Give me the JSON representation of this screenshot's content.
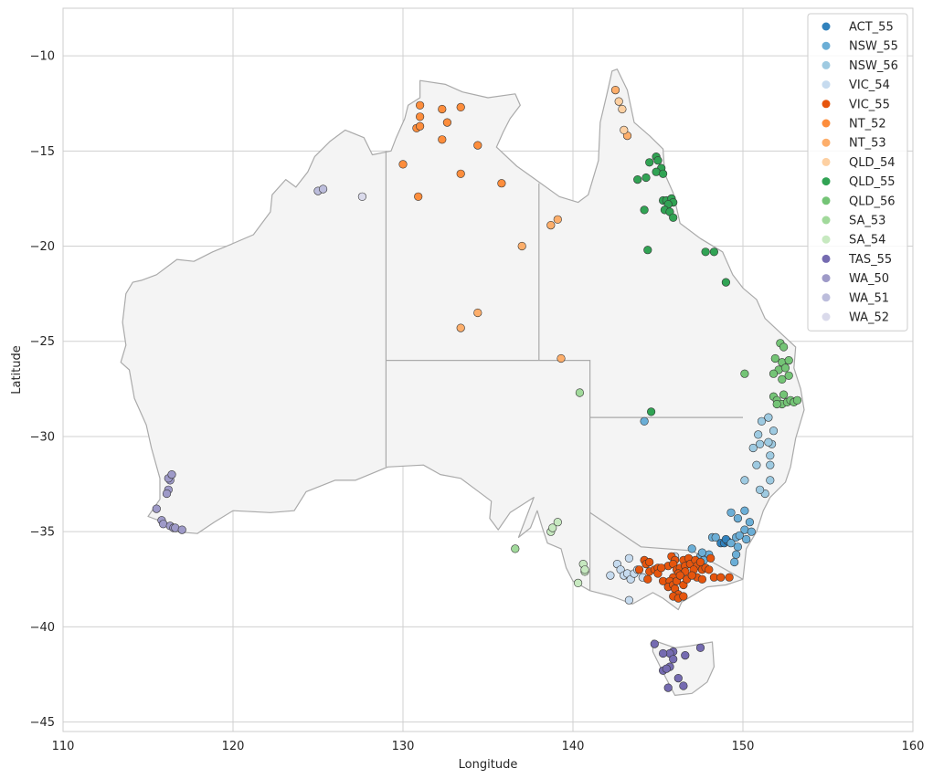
{
  "chart_data": {
    "type": "scatter",
    "title": "",
    "xlabel": "Longitude",
    "ylabel": "Latitude",
    "xlim": [
      110,
      160
    ],
    "ylim": [
      -45.5,
      -7.5
    ],
    "xticks": [
      110,
      120,
      130,
      140,
      150,
      160
    ],
    "yticks": [
      -45,
      -40,
      -35,
      -30,
      -25,
      -20,
      -15,
      -10
    ],
    "grid": true,
    "legend_position": "top-right",
    "basemap": "Australia state boundaries (light grey fill)",
    "colors": {
      "ACT_55": "#3182bd",
      "NSW_55": "#6baed6",
      "NSW_56": "#9ecae1",
      "VIC_54": "#c6dbef",
      "VIC_55": "#e6550d",
      "NT_52": "#fd8d3c",
      "NT_53": "#fdae6b",
      "QLD_54": "#fdd0a2",
      "QLD_55": "#31a354",
      "QLD_56": "#74c476",
      "SA_53": "#a1d99b",
      "SA_54": "#c7e9c0",
      "TAS_55": "#756bb1",
      "WA_50": "#9e9ac8",
      "WA_51": "#bcbddc",
      "WA_52": "#dadaeb"
    },
    "series": [
      {
        "name": "ACT_55",
        "points": [
          [
            148.7,
            -35.6
          ],
          [
            148.9,
            -35.6
          ],
          [
            149.1,
            -35.5
          ],
          [
            149.0,
            -35.4
          ]
        ]
      },
      {
        "name": "NSW_55",
        "points": [
          [
            149.3,
            -35.6
          ],
          [
            149.6,
            -35.3
          ],
          [
            149.5,
            -36.6
          ],
          [
            149.7,
            -35.8
          ],
          [
            149.8,
            -35.2
          ],
          [
            150.1,
            -34.9
          ],
          [
            150.2,
            -35.4
          ],
          [
            150.5,
            -35.0
          ],
          [
            149.6,
            -36.2
          ],
          [
            149.3,
            -34.0
          ],
          [
            149.7,
            -34.3
          ],
          [
            150.1,
            -33.9
          ],
          [
            150.4,
            -34.5
          ],
          [
            147.0,
            -35.9
          ],
          [
            147.5,
            -36.3
          ],
          [
            147.7,
            -36.5
          ],
          [
            148.0,
            -36.2
          ],
          [
            148.2,
            -35.3
          ],
          [
            148.4,
            -35.3
          ],
          [
            144.2,
            -29.2
          ],
          [
            147.6,
            -36.1
          ]
        ]
      },
      {
        "name": "NSW_56",
        "points": [
          [
            150.1,
            -32.3
          ],
          [
            150.6,
            -30.6
          ],
          [
            150.9,
            -29.9
          ],
          [
            150.8,
            -31.5
          ],
          [
            151.0,
            -30.4
          ],
          [
            151.1,
            -29.2
          ],
          [
            151.5,
            -29.0
          ],
          [
            151.7,
            -30.4
          ],
          [
            151.8,
            -29.7
          ],
          [
            151.5,
            -30.3
          ],
          [
            151.6,
            -31.5
          ],
          [
            151.6,
            -31.0
          ],
          [
            151.6,
            -32.3
          ],
          [
            151.3,
            -33.0
          ],
          [
            151.0,
            -32.8
          ]
        ]
      },
      {
        "name": "VIC_54",
        "points": [
          [
            142.2,
            -37.3
          ],
          [
            142.6,
            -36.7
          ],
          [
            142.8,
            -37.0
          ],
          [
            143.0,
            -37.3
          ],
          [
            143.2,
            -37.2
          ],
          [
            143.3,
            -36.4
          ],
          [
            143.4,
            -37.5
          ],
          [
            143.6,
            -37.2
          ],
          [
            143.8,
            -37.0
          ],
          [
            144.1,
            -37.4
          ],
          [
            143.3,
            -38.6
          ],
          [
            146.0,
            -36.3
          ]
        ]
      },
      {
        "name": "VIC_55",
        "points": [
          [
            143.9,
            -37.0
          ],
          [
            144.2,
            -36.5
          ],
          [
            144.3,
            -36.7
          ],
          [
            144.5,
            -36.6
          ],
          [
            144.5,
            -37.1
          ],
          [
            144.4,
            -37.5
          ],
          [
            144.8,
            -37.0
          ],
          [
            145.0,
            -36.9
          ],
          [
            145.0,
            -37.2
          ],
          [
            145.3,
            -37.6
          ],
          [
            145.6,
            -36.8
          ],
          [
            145.8,
            -36.3
          ],
          [
            146.0,
            -36.5
          ],
          [
            145.9,
            -36.7
          ],
          [
            146.1,
            -37.0
          ],
          [
            146.3,
            -36.9
          ],
          [
            146.5,
            -36.5
          ],
          [
            146.6,
            -36.8
          ],
          [
            146.8,
            -36.4
          ],
          [
            146.9,
            -36.7
          ],
          [
            147.2,
            -36.5
          ],
          [
            147.3,
            -36.8
          ],
          [
            147.5,
            -36.6
          ],
          [
            147.1,
            -37.0
          ],
          [
            147.3,
            -37.4
          ],
          [
            146.6,
            -37.1
          ],
          [
            146.2,
            -37.2
          ],
          [
            145.9,
            -37.4
          ],
          [
            145.7,
            -37.6
          ],
          [
            145.6,
            -37.9
          ],
          [
            145.9,
            -37.8
          ],
          [
            146.1,
            -37.6
          ],
          [
            146.3,
            -37.3
          ],
          [
            146.0,
            -38.0
          ],
          [
            146.2,
            -38.3
          ],
          [
            145.9,
            -38.4
          ],
          [
            146.2,
            -38.5
          ],
          [
            146.5,
            -38.4
          ],
          [
            146.5,
            -37.8
          ],
          [
            146.7,
            -37.5
          ],
          [
            147.0,
            -37.3
          ],
          [
            147.6,
            -37.5
          ],
          [
            147.6,
            -37.0
          ],
          [
            147.8,
            -36.9
          ],
          [
            148.0,
            -37.0
          ],
          [
            148.3,
            -37.4
          ],
          [
            148.7,
            -37.4
          ],
          [
            149.2,
            -37.4
          ],
          [
            148.1,
            -36.4
          ],
          [
            145.2,
            -36.9
          ]
        ]
      },
      {
        "name": "NT_52",
        "points": [
          [
            131.0,
            -12.6
          ],
          [
            131.0,
            -13.2
          ],
          [
            130.8,
            -13.8
          ],
          [
            131.0,
            -13.7
          ],
          [
            132.3,
            -12.8
          ],
          [
            133.4,
            -12.7
          ],
          [
            132.6,
            -13.5
          ],
          [
            132.3,
            -14.4
          ],
          [
            134.4,
            -14.7
          ],
          [
            130.0,
            -15.7
          ],
          [
            130.9,
            -17.4
          ],
          [
            133.4,
            -16.2
          ],
          [
            135.8,
            -16.7
          ]
        ]
      },
      {
        "name": "NT_53",
        "points": [
          [
            138.7,
            -18.9
          ],
          [
            139.1,
            -18.6
          ],
          [
            137.0,
            -20.0
          ],
          [
            134.4,
            -23.5
          ],
          [
            133.4,
            -24.3
          ],
          [
            142.5,
            -11.8
          ],
          [
            143.2,
            -14.2
          ],
          [
            139.3,
            -25.9
          ]
        ]
      },
      {
        "name": "QLD_54",
        "points": [
          [
            142.7,
            -12.4
          ],
          [
            142.9,
            -12.8
          ],
          [
            143.0,
            -13.9
          ]
        ]
      },
      {
        "name": "QLD_55",
        "points": [
          [
            144.9,
            -15.3
          ],
          [
            145.0,
            -15.5
          ],
          [
            144.5,
            -15.6
          ],
          [
            145.2,
            -15.9
          ],
          [
            144.9,
            -16.1
          ],
          [
            145.3,
            -16.2
          ],
          [
            144.3,
            -16.4
          ],
          [
            143.8,
            -16.5
          ],
          [
            145.3,
            -17.6
          ],
          [
            145.5,
            -17.6
          ],
          [
            145.8,
            -17.5
          ],
          [
            145.9,
            -17.7
          ],
          [
            145.6,
            -17.8
          ],
          [
            145.4,
            -18.1
          ],
          [
            145.7,
            -18.2
          ],
          [
            145.9,
            -18.5
          ],
          [
            144.2,
            -18.1
          ],
          [
            144.4,
            -20.2
          ],
          [
            147.8,
            -20.3
          ],
          [
            148.3,
            -20.3
          ],
          [
            149.0,
            -21.9
          ],
          [
            144.6,
            -28.7
          ]
        ]
      },
      {
        "name": "QLD_56",
        "points": [
          [
            152.2,
            -25.1
          ],
          [
            152.4,
            -25.3
          ],
          [
            151.9,
            -25.9
          ],
          [
            152.3,
            -26.1
          ],
          [
            152.7,
            -26.0
          ],
          [
            152.1,
            -26.5
          ],
          [
            152.5,
            -26.4
          ],
          [
            152.7,
            -26.8
          ],
          [
            152.3,
            -27.0
          ],
          [
            151.8,
            -26.7
          ],
          [
            150.1,
            -26.7
          ],
          [
            151.8,
            -27.9
          ],
          [
            152.0,
            -28.1
          ],
          [
            152.3,
            -28.3
          ],
          [
            152.4,
            -27.8
          ],
          [
            152.6,
            -28.2
          ],
          [
            152.8,
            -28.1
          ],
          [
            153.0,
            -28.2
          ],
          [
            153.2,
            -28.1
          ],
          [
            152.0,
            -28.3
          ]
        ]
      },
      {
        "name": "SA_53",
        "points": [
          [
            136.6,
            -35.9
          ],
          [
            140.4,
            -27.7
          ]
        ]
      },
      {
        "name": "SA_54",
        "points": [
          [
            138.7,
            -35.0
          ],
          [
            138.8,
            -34.8
          ],
          [
            139.1,
            -34.5
          ],
          [
            140.6,
            -36.7
          ],
          [
            140.7,
            -37.1
          ],
          [
            140.3,
            -37.7
          ],
          [
            140.7,
            -37.0
          ]
        ]
      },
      {
        "name": "TAS_55",
        "points": [
          [
            144.8,
            -40.9
          ],
          [
            145.9,
            -41.3
          ],
          [
            145.7,
            -41.4
          ],
          [
            145.9,
            -41.7
          ],
          [
            145.3,
            -41.4
          ],
          [
            145.7,
            -42.1
          ],
          [
            145.3,
            -42.3
          ],
          [
            145.5,
            -42.2
          ],
          [
            146.2,
            -42.7
          ],
          [
            146.6,
            -41.5
          ],
          [
            147.5,
            -41.1
          ],
          [
            146.5,
            -43.1
          ],
          [
            145.6,
            -43.2
          ]
        ]
      },
      {
        "name": "WA_50",
        "points": [
          [
            115.5,
            -33.8
          ],
          [
            115.8,
            -34.4
          ],
          [
            115.9,
            -34.6
          ],
          [
            116.3,
            -34.7
          ],
          [
            116.5,
            -34.8
          ],
          [
            116.6,
            -34.8
          ],
          [
            117.0,
            -34.9
          ],
          [
            116.2,
            -32.8
          ],
          [
            116.3,
            -32.3
          ],
          [
            116.1,
            -33.0
          ],
          [
            116.2,
            -32.2
          ],
          [
            116.4,
            -32.0
          ]
        ]
      },
      {
        "name": "WA_51",
        "points": [
          [
            125.0,
            -17.1
          ],
          [
            125.3,
            -17.0
          ]
        ]
      },
      {
        "name": "WA_52",
        "points": [
          [
            127.6,
            -17.4
          ]
        ]
      }
    ]
  }
}
